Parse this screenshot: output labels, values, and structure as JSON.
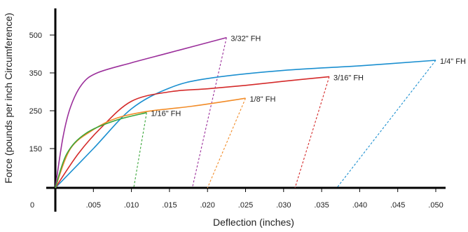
{
  "chart_data": {
    "type": "line",
    "xlabel": "Deflection (inches)",
    "ylabel": "Force (pounds per inch Circumference)",
    "x_ticks": [
      ".005",
      ".010",
      ".015",
      ".020",
      ".025",
      ".030",
      ".035",
      ".040",
      ".045",
      ".050"
    ],
    "x_tick_values": [
      0.005,
      0.01,
      0.015,
      0.02,
      0.025,
      0.03,
      0.035,
      0.04,
      0.045,
      0.05
    ],
    "y_ticks": [
      "150",
      "250",
      "350",
      "500"
    ],
    "y_tick_values": [
      150,
      250,
      350,
      500
    ],
    "origin_label": "0",
    "series": [
      {
        "name": "3/32\" FH",
        "color": "#9b2f9b",
        "loading": [
          [
            0,
            0
          ],
          [
            0.001,
            180
          ],
          [
            0.002,
            260
          ],
          [
            0.0035,
            320
          ],
          [
            0.0055,
            350
          ],
          [
            0.01,
            390
          ],
          [
            0.015,
            430
          ],
          [
            0.0225,
            490
          ]
        ],
        "unloading": [
          [
            0.0225,
            490
          ],
          [
            0.018,
            0
          ]
        ]
      },
      {
        "name": "1/4\" FH",
        "color": "#1a8fd0",
        "loading": [
          [
            0,
            0
          ],
          [
            0.005,
            150
          ],
          [
            0.01,
            255
          ],
          [
            0.015,
            310
          ],
          [
            0.02,
            335
          ],
          [
            0.03,
            360
          ],
          [
            0.04,
            378
          ],
          [
            0.05,
            400
          ]
        ],
        "unloading": [
          [
            0.05,
            400
          ],
          [
            0.037,
            0
          ]
        ]
      },
      {
        "name": "3/16\" FH",
        "color": "#d42a2a",
        "loading": [
          [
            0,
            0
          ],
          [
            0.003,
            130
          ],
          [
            0.006,
            205
          ],
          [
            0.01,
            275
          ],
          [
            0.015,
            300
          ],
          [
            0.02,
            308
          ],
          [
            0.025,
            317
          ],
          [
            0.03,
            328
          ],
          [
            0.036,
            340
          ]
        ],
        "unloading": [
          [
            0.036,
            340
          ],
          [
            0.0315,
            0
          ]
        ]
      },
      {
        "name": "1/8\" FH",
        "color": "#f28c28",
        "loading": [
          [
            0,
            0
          ],
          [
            0.002,
            150
          ],
          [
            0.005,
            200
          ],
          [
            0.008,
            230
          ],
          [
            0.012,
            248
          ],
          [
            0.018,
            262
          ],
          [
            0.025,
            283
          ]
        ],
        "unloading": [
          [
            0.025,
            283
          ],
          [
            0.02,
            0
          ]
        ]
      },
      {
        "name": "1/16\" FH",
        "color": "#3aa63a",
        "loading": [
          [
            0,
            0
          ],
          [
            0.0015,
            130
          ],
          [
            0.004,
            190
          ],
          [
            0.008,
            225
          ],
          [
            0.012,
            245
          ]
        ],
        "unloading": [
          [
            0.012,
            245
          ],
          [
            0.0103,
            0
          ]
        ]
      }
    ],
    "x_axis_max": 0.052,
    "grid": false,
    "legend": "inline"
  }
}
